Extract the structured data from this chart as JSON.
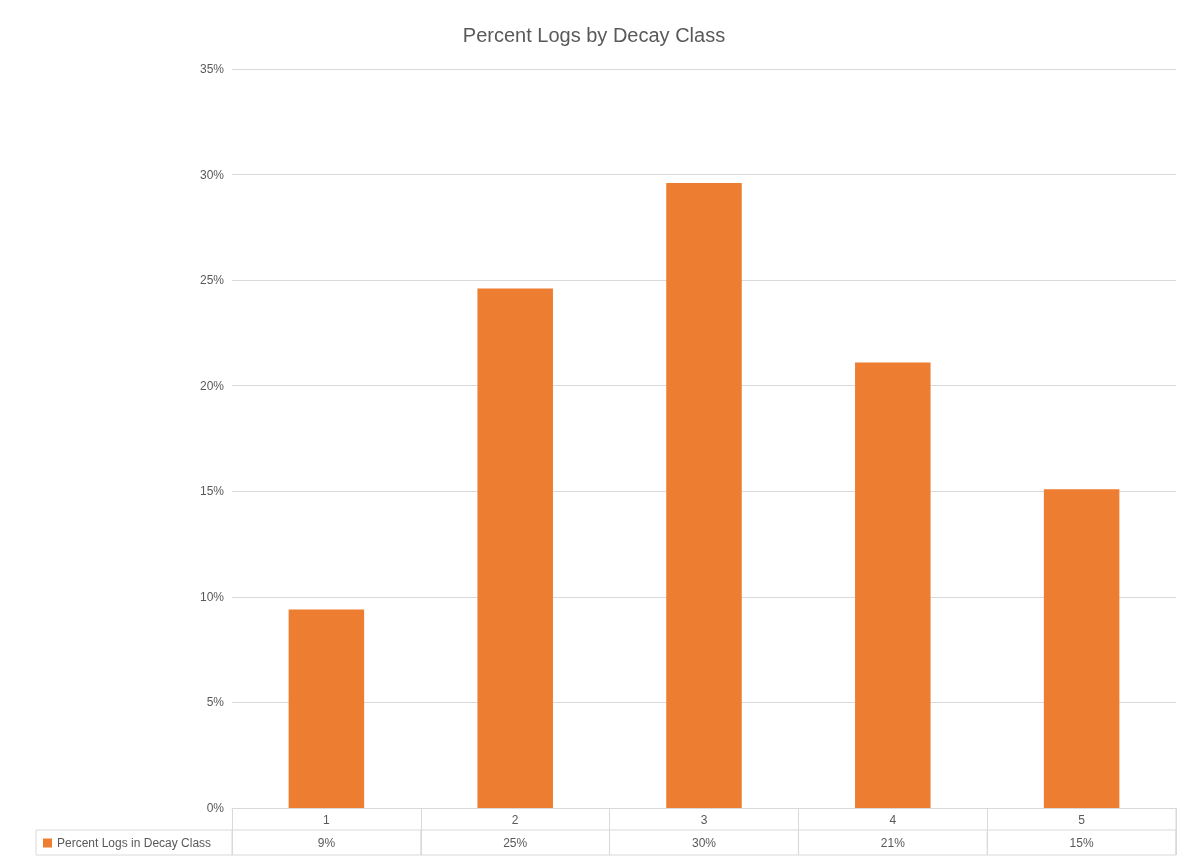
{
  "chart_data": {
    "type": "bar",
    "title": "Percent Logs by Decay Class",
    "categories": [
      "1",
      "2",
      "3",
      "4",
      "5"
    ],
    "series": [
      {
        "name": "Percent Logs in Decay Class",
        "color": "#ed7d31",
        "values": [
          9.4,
          24.6,
          29.6,
          21.1,
          15.1
        ],
        "value_labels": [
          "9%",
          "25%",
          "30%",
          "21%",
          "15%"
        ]
      }
    ],
    "ylim": [
      0,
      35
    ],
    "yticks": [
      {
        "value": 0,
        "label": "0%"
      },
      {
        "value": 5,
        "label": "5%"
      },
      {
        "value": 10,
        "label": "10%"
      },
      {
        "value": 15,
        "label": "15%"
      },
      {
        "value": 20,
        "label": "20%"
      },
      {
        "value": 25,
        "label": "25%"
      },
      {
        "value": 30,
        "label": "30%"
      },
      {
        "value": 35,
        "label": "35%"
      }
    ],
    "grid": "y",
    "legend": "bottom"
  }
}
